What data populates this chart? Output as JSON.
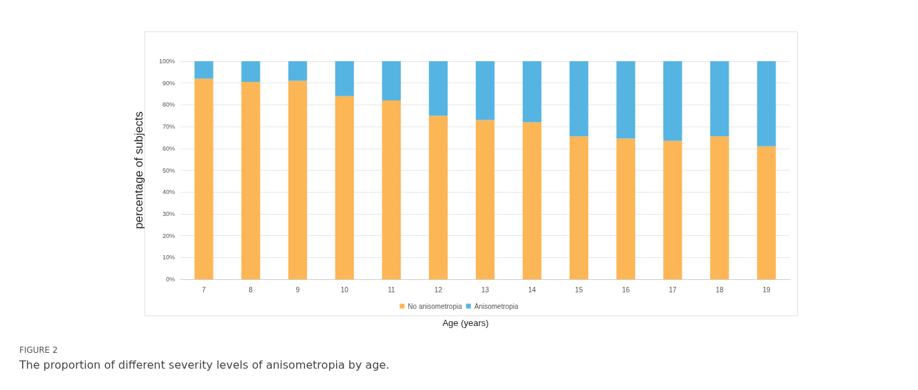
{
  "chart_data": {
    "type": "bar",
    "stacked": true,
    "xlabel": "Age (years)",
    "ylabel": "percentage of subjects",
    "categories": [
      "7",
      "8",
      "9",
      "10",
      "11",
      "12",
      "13",
      "14",
      "15",
      "16",
      "17",
      "18",
      "19"
    ],
    "series": [
      {
        "name": "No anisometropia",
        "color": "#fdb655",
        "values": [
          92,
          90.5,
          91,
          84,
          82,
          75,
          73,
          72,
          65.5,
          64.5,
          63.5,
          65.5,
          61
        ]
      },
      {
        "name": "Anisometropia",
        "color": "#56b4e2",
        "values": [
          8,
          9.5,
          9,
          16,
          18,
          25,
          27,
          28,
          34.5,
          35.5,
          36.5,
          34.5,
          39
        ]
      }
    ],
    "ylim": [
      0,
      100
    ],
    "yticks": [
      {
        "value": 0,
        "label": "0%"
      },
      {
        "value": 10,
        "label": "10%"
      },
      {
        "value": 20,
        "label": "20%"
      },
      {
        "value": 30,
        "label": "30%"
      },
      {
        "value": 40,
        "label": "40%"
      },
      {
        "value": 50,
        "label": "50%"
      },
      {
        "value": 60,
        "label": "60%"
      },
      {
        "value": 70,
        "label": "70%"
      },
      {
        "value": 80,
        "label": "80%"
      },
      {
        "value": 90,
        "label": "90%"
      },
      {
        "value": 100,
        "label": "100%"
      }
    ],
    "grid": "y",
    "legend": "bottom",
    "annotations": [
      "FIGURE 2",
      "The proportion of different severity levels of anisometropia by age."
    ]
  }
}
